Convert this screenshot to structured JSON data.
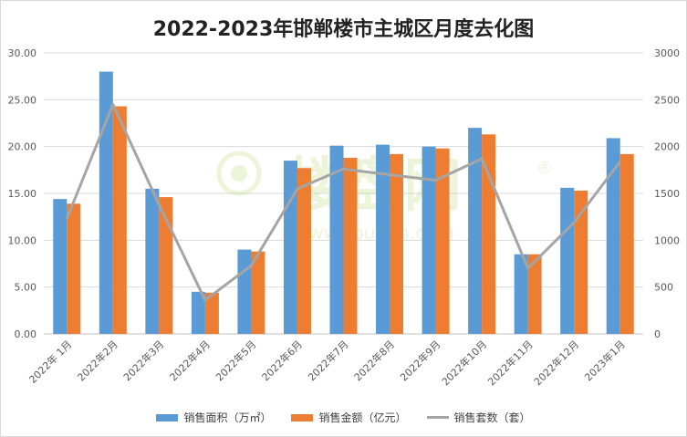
{
  "chart_data": {
    "type": "bar",
    "title": "2022-2023年邯郸楼市主城区月度去化图",
    "categories": [
      "2022年 1月",
      "2022年2月",
      "2022年3月",
      "2022年4月",
      "2022年5月",
      "2022年6月",
      "2022年7月",
      "2022年8月",
      "2022年9月",
      "2022年10月",
      "2022年11月",
      "2022年12月",
      "2023年1月"
    ],
    "series": [
      {
        "name": "销售面积（万㎡）",
        "type": "bar",
        "axis": "left",
        "color": "#5b9bd5",
        "values": [
          14.4,
          28.0,
          15.5,
          4.5,
          9.0,
          18.5,
          20.1,
          20.2,
          20.0,
          22.0,
          8.5,
          15.6,
          20.9
        ]
      },
      {
        "name": "销售金额（亿元）",
        "type": "bar",
        "axis": "left",
        "color": "#ed7d31",
        "values": [
          13.9,
          24.3,
          14.6,
          4.4,
          8.8,
          17.7,
          18.8,
          19.2,
          19.8,
          21.3,
          8.5,
          15.3,
          19.2
        ]
      },
      {
        "name": "销售套数（套）",
        "type": "line",
        "axis": "right",
        "color": "#a5a5a5",
        "values": [
          1230,
          2450,
          1380,
          360,
          730,
          1550,
          1760,
          1700,
          1640,
          1870,
          700,
          1190,
          1840
        ]
      }
    ],
    "y_left": {
      "min": 0,
      "max": 30,
      "step": 5,
      "ticks": [
        "0.00",
        "5.00",
        "10.00",
        "15.00",
        "20.00",
        "25.00",
        "30.00"
      ]
    },
    "y_right": {
      "min": 0,
      "max": 3000,
      "step": 500,
      "ticks": [
        "0",
        "500",
        "1000",
        "1500",
        "2000",
        "2500",
        "3000"
      ]
    },
    "grid": true,
    "legend": "bottom"
  },
  "watermark": {
    "text": "楼盘网",
    "url": "www.Loupan.com"
  }
}
